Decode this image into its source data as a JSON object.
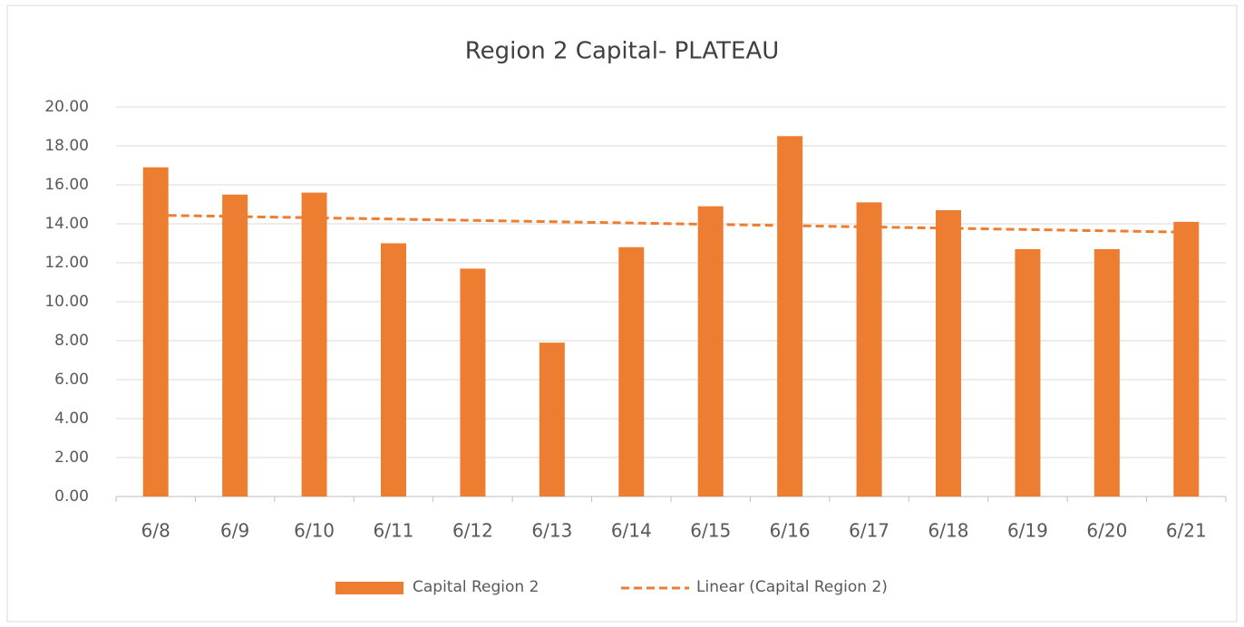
{
  "chart_data": {
    "type": "bar",
    "title": "Region 2 Capital- PLATEAU",
    "categories": [
      "6/8",
      "6/9",
      "6/10",
      "6/11",
      "6/12",
      "6/13",
      "6/14",
      "6/15",
      "6/16",
      "6/17",
      "6/18",
      "6/19",
      "6/20",
      "6/21"
    ],
    "series": [
      {
        "name": "Capital Region 2",
        "color": "#ed7d31",
        "values": [
          16.9,
          15.5,
          15.6,
          13.0,
          11.7,
          7.9,
          12.8,
          14.9,
          18.5,
          15.1,
          14.7,
          12.7,
          12.7,
          14.1
        ]
      }
    ],
    "trendline": {
      "type": "linear",
      "name": "Linear (Capital Region 2)",
      "color": "#ed7d31"
    },
    "ylim": [
      0,
      20
    ],
    "yticks": [
      {
        "value": 0,
        "label": "0.00"
      },
      {
        "value": 2,
        "label": "2.00"
      },
      {
        "value": 4,
        "label": "4.00"
      },
      {
        "value": 6,
        "label": "6.00"
      },
      {
        "value": 8,
        "label": "8.00"
      },
      {
        "value": 10,
        "label": "10.00"
      },
      {
        "value": 12,
        "label": "12.00"
      },
      {
        "value": 14,
        "label": "14.00"
      },
      {
        "value": 16,
        "label": "16.00"
      },
      {
        "value": 18,
        "label": "18.00"
      },
      {
        "value": 20,
        "label": "20.00"
      }
    ],
    "grid": true,
    "legend": "bottom"
  }
}
